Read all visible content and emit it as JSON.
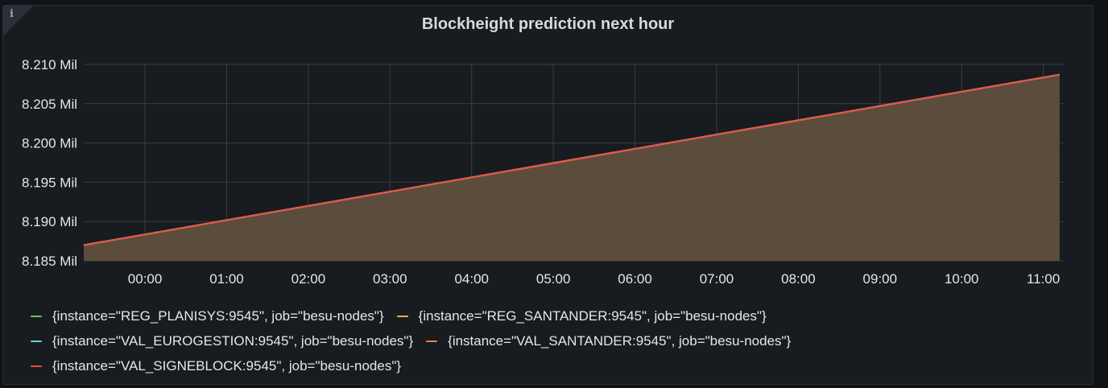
{
  "panel": {
    "title": "Blockheight prediction next hour",
    "info_icon": "info-icon"
  },
  "chart_data": {
    "type": "area",
    "title": "Blockheight prediction next hour",
    "xlabel": "",
    "ylabel": "",
    "x_ticks": [
      "00:00",
      "01:00",
      "02:00",
      "03:00",
      "04:00",
      "05:00",
      "06:00",
      "07:00",
      "08:00",
      "09:00",
      "10:00",
      "11:00"
    ],
    "y_ticks": [
      "8.185 Mil",
      "8.190 Mil",
      "8.195 Mil",
      "8.200 Mil",
      "8.205 Mil",
      "8.210 Mil"
    ],
    "ylim": [
      8185000,
      8210000
    ],
    "xlim_hours": [
      -0.75,
      11.25
    ],
    "grid": true,
    "legend_position": "bottom",
    "series": [
      {
        "name": "{instance=\"REG_PLANISYS:9545\", job=\"besu-nodes\"}",
        "color": "#73bf69",
        "x_hours": [
          -0.75,
          11.2
        ],
        "values": [
          8187000,
          8208700
        ]
      },
      {
        "name": "{instance=\"REG_SANTANDER:9545\", job=\"besu-nodes\"}",
        "color": "#fade2a",
        "x_hours": [
          -0.75,
          11.2
        ],
        "values": [
          8187000,
          8208700
        ]
      },
      {
        "name": "{instance=\"VAL_EUROGESTION:9545\", job=\"besu-nodes\"}",
        "color": "#5794f2",
        "x_hours": [
          -0.75,
          11.2
        ],
        "values": [
          8187000,
          8208700
        ]
      },
      {
        "name": "{instance=\"VAL_SANTANDER:9545\", job=\"besu-nodes\"}",
        "color": "#ff9830",
        "x_hours": [
          -0.75,
          11.2
        ],
        "values": [
          8187000,
          8208700
        ]
      },
      {
        "name": "{instance=\"VAL_SIGNEBLOCK:9545\", job=\"besu-nodes\"}",
        "color": "#f2495c",
        "x_hours": [
          -0.75,
          11.2
        ],
        "values": [
          8187000,
          8208700
        ]
      }
    ]
  },
  "legend": {
    "rows": [
      [
        {
          "label": "{instance=\"REG_PLANISYS:9545\", job=\"besu-nodes\"}",
          "color": "#73bf69"
        },
        {
          "label": "{instance=\"REG_SANTANDER:9545\", job=\"besu-nodes\"}",
          "color": "#eab839"
        }
      ],
      [
        {
          "label": "{instance=\"VAL_EUROGESTION:9545\", job=\"besu-nodes\"}",
          "color": "#6ed0e0"
        },
        {
          "label": "{instance=\"VAL_SANTANDER:9545\", job=\"besu-nodes\"}",
          "color": "#ef843c"
        }
      ],
      [
        {
          "label": "{instance=\"VAL_SIGNEBLOCK:9545\", job=\"besu-nodes\"}",
          "color": "#e24d42"
        }
      ]
    ]
  },
  "colors": {
    "fill": "#5c4c3c",
    "line": "#e5534b",
    "grid": "#3a3d42"
  }
}
